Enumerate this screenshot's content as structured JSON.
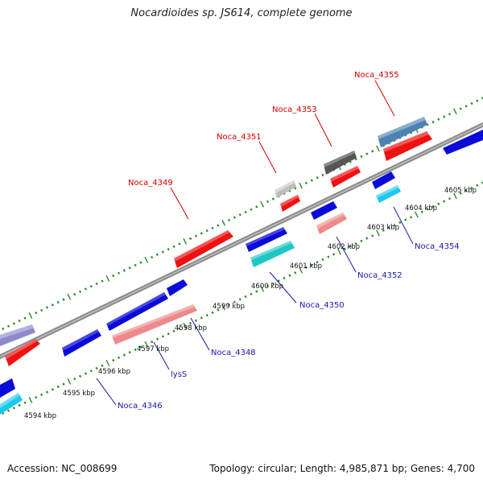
{
  "title": "Nocardioides sp. JS614, complete genome",
  "footer": {
    "accession": "Accession: NC_008699",
    "summary": "Topology: circular; Length: 4,985,871 bp; Genes: 4,700"
  },
  "colors": {
    "backbone": "#8c8c8c",
    "tick": "#2a8a2a",
    "blue": "#0b0bd9",
    "red": "#ef1111",
    "cyan": "#1cc8ee",
    "teal": "#20c6c6",
    "pink": "#ee8a8a",
    "steel": "#4d82b3",
    "darkgray": "#555555",
    "lightgray": "#bdbdbd",
    "lavender": "#8e88cc",
    "label_up": "#d40000",
    "label_down": "#1a1aa8"
  },
  "kbp_ticks": [
    {
      "label": "4594 kbp"
    },
    {
      "label": "4595 kbp"
    },
    {
      "label": "4596 kbp"
    },
    {
      "label": "4597 kbp"
    },
    {
      "label": "4598 kbp"
    },
    {
      "label": "4599 kbp"
    },
    {
      "label": "4600 kbp"
    },
    {
      "label": "4601 kbp"
    },
    {
      "label": "4602 kbp"
    },
    {
      "label": "4603 kbp"
    },
    {
      "label": "4604 kbp"
    },
    {
      "label": "4605 kbp"
    }
  ],
  "gene_labels": [
    {
      "name": "Noca_4349"
    },
    {
      "name": "Noca_4351"
    },
    {
      "name": "Noca_4353"
    },
    {
      "name": "Noca_4355"
    },
    {
      "name": "Noca_4346"
    },
    {
      "name": "lysS"
    },
    {
      "name": "Noca_4348"
    },
    {
      "name": "Noca_4350"
    },
    {
      "name": "Noca_4352"
    },
    {
      "name": "Noca_4354"
    }
  ]
}
